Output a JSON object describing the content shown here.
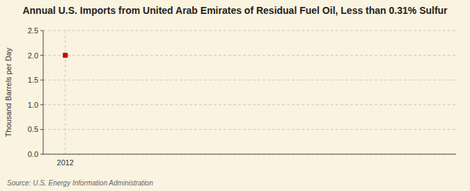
{
  "chart_data": {
    "type": "scatter",
    "title": "Annual U.S. Imports from United Arab Emirates of Residual Fuel Oil, Less than 0.31% Sulfur",
    "y_label": "Thousand Barrels per Day",
    "source": "Source: U.S. Energy Information Administration",
    "x": [
      2012
    ],
    "values": [
      2.0
    ],
    "color": "#cc0000",
    "marker": "square",
    "xlim": [
      2011.4,
      2022.6
    ],
    "xticks": [
      2012
    ],
    "ylim": [
      0.0,
      2.5
    ],
    "yticks": [
      {
        "value": 0.0,
        "label": "0.0"
      },
      0.5,
      {
        "value": 1.0,
        "label": "1.0"
      },
      1.5,
      {
        "value": 2.0,
        "label": "2.0"
      },
      2.5
    ],
    "grid": true
  }
}
